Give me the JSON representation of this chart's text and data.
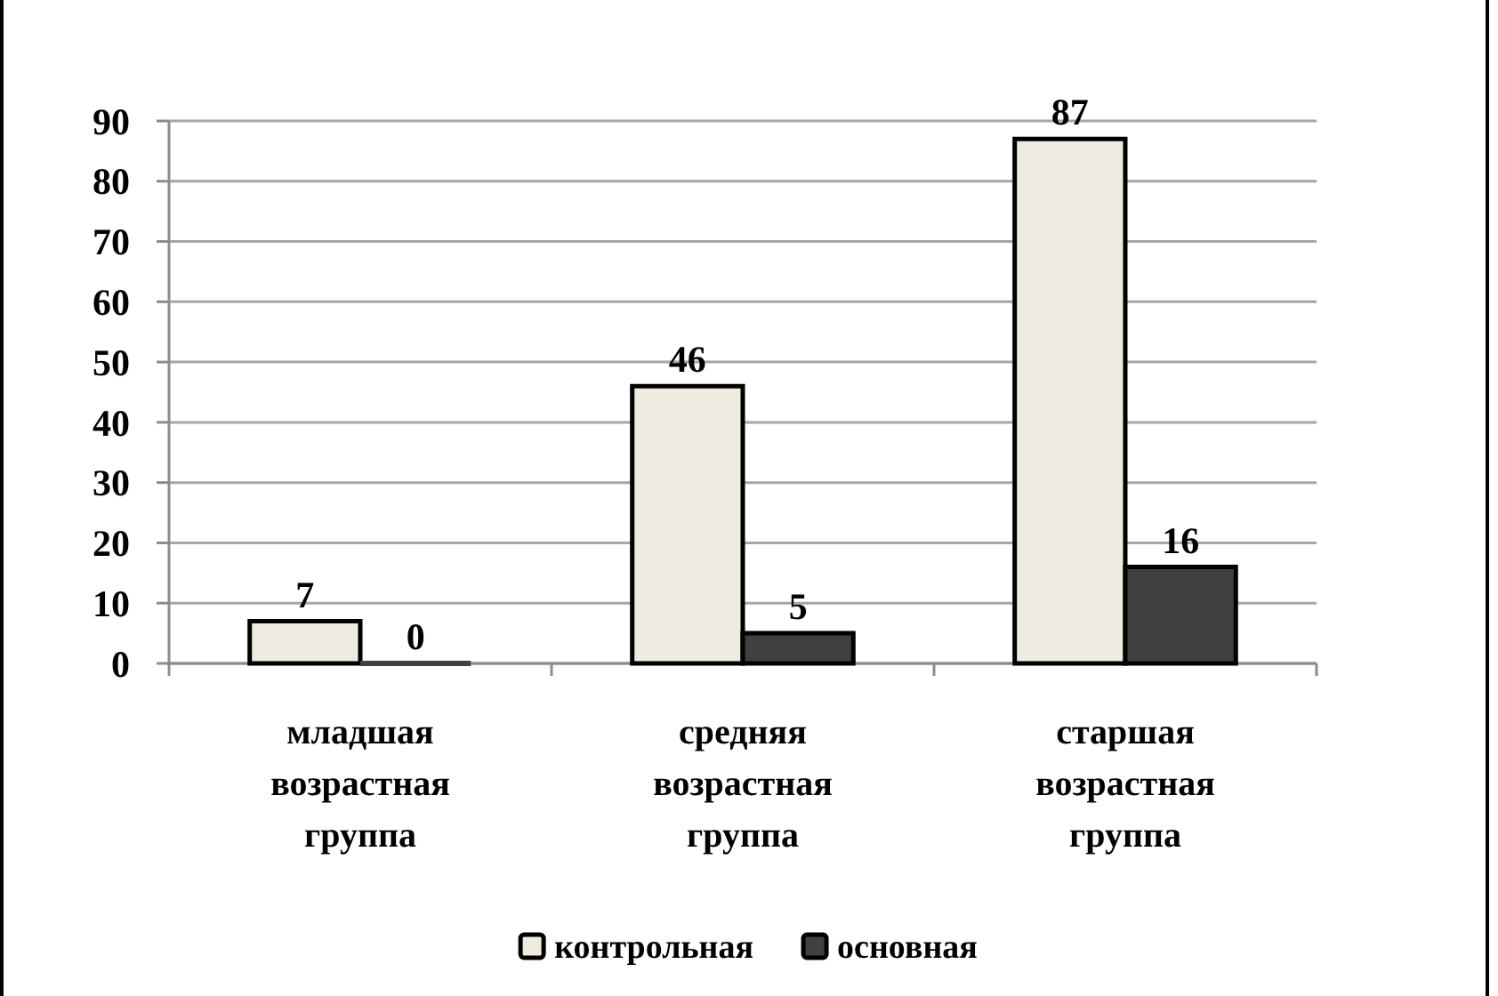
{
  "chart_data": {
    "type": "bar",
    "categories": [
      "младшая возрастная группа",
      "средняя возрастная группа",
      "старшая возрастная группа"
    ],
    "series": [
      {
        "name": "контрольная",
        "color": "#eeece1",
        "values": [
          7,
          46,
          87
        ]
      },
      {
        "name": "основная",
        "color": "#404040",
        "values": [
          0,
          5,
          16
        ]
      }
    ],
    "ylim": [
      0,
      90
    ],
    "yticks": [
      0,
      10,
      20,
      30,
      40,
      50,
      60,
      70,
      80,
      90
    ],
    "grid": "y",
    "legend": "bottom",
    "data_labels": true
  }
}
